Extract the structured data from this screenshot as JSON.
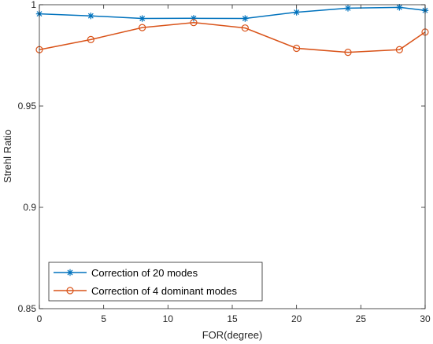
{
  "chart_data": {
    "type": "line",
    "title": "",
    "xlabel": "FOR(degree)",
    "ylabel": "Strehl Ratio",
    "xlim": [
      0,
      30
    ],
    "ylim": [
      0.85,
      1
    ],
    "x_ticks": [
      0,
      5,
      10,
      15,
      20,
      25,
      30
    ],
    "y_ticks": [
      0.85,
      0.9,
      0.95,
      1
    ],
    "x_tick_labels": [
      "0",
      "5",
      "10",
      "15",
      "20",
      "25",
      "30"
    ],
    "y_tick_labels": [
      "0.85",
      "0.9",
      "0.95",
      "1"
    ],
    "grid": false,
    "legend_position": "bottom-left",
    "series": [
      {
        "name": "Correction of 20 modes",
        "marker": "asterisk",
        "color": "#0072BD",
        "x": [
          0,
          4,
          8,
          12,
          16,
          20,
          24,
          28,
          30
        ],
        "values": [
          0.9955,
          0.9945,
          0.9932,
          0.9933,
          0.9932,
          0.9963,
          0.9983,
          0.9987,
          0.9972
        ]
      },
      {
        "name": "Correction of 4 dominant modes",
        "marker": "circle",
        "color": "#D95319",
        "x": [
          0,
          4,
          8,
          12,
          16,
          20,
          24,
          28,
          30
        ],
        "values": [
          0.9778,
          0.9828,
          0.9887,
          0.9912,
          0.9885,
          0.9785,
          0.9765,
          0.9778,
          0.9865
        ]
      }
    ]
  }
}
